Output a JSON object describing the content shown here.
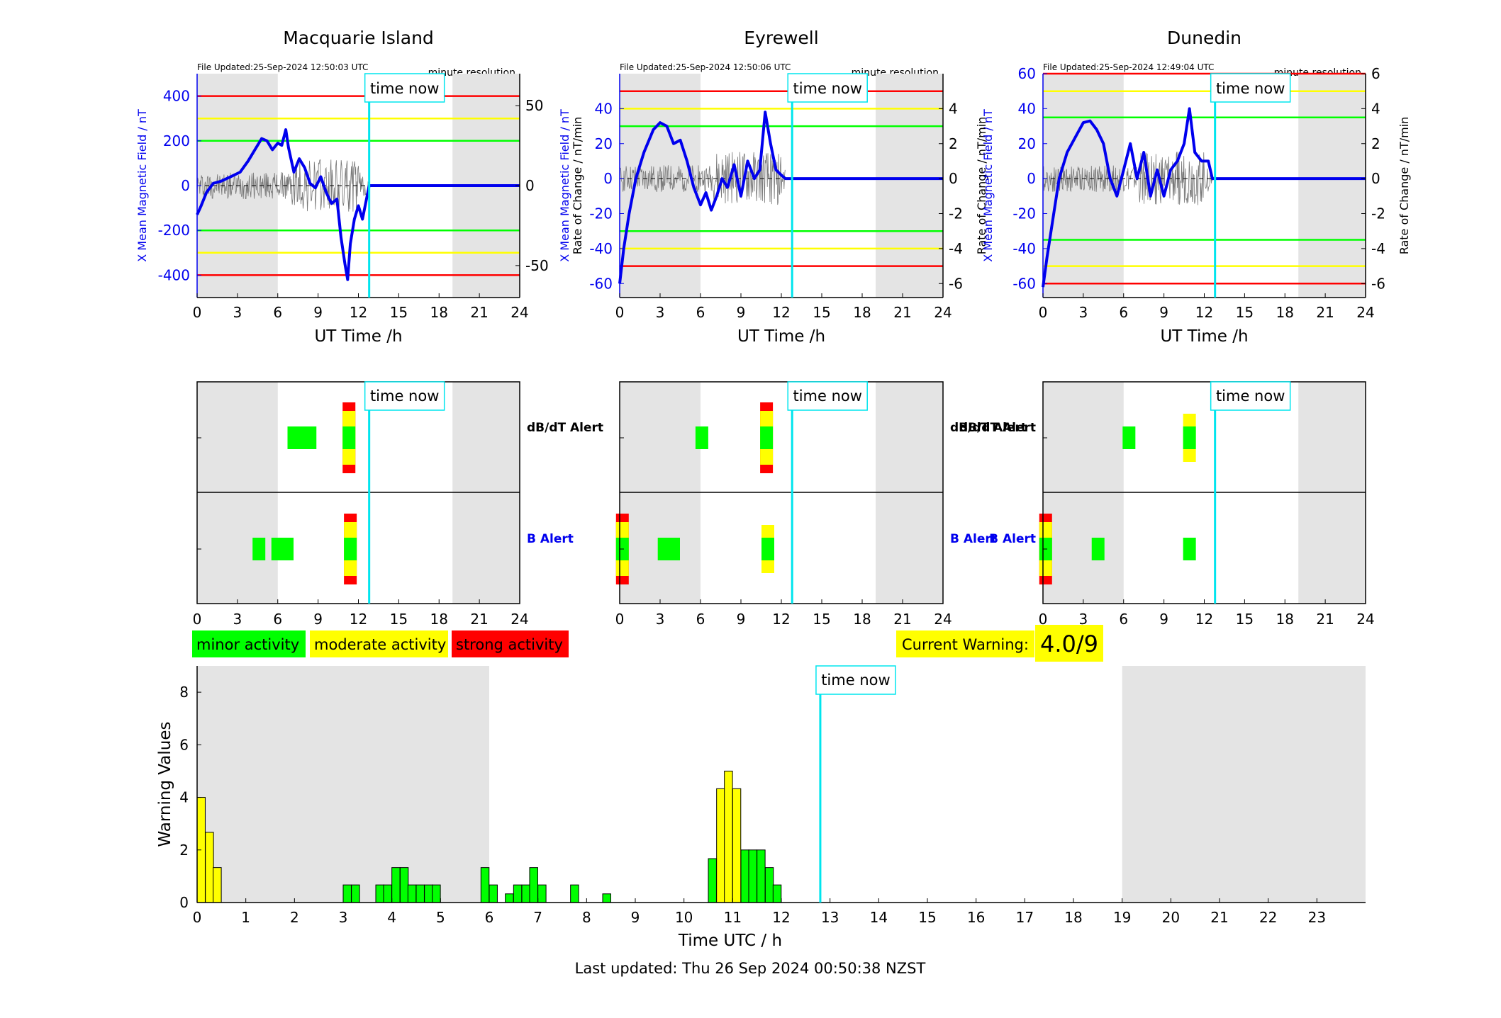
{
  "stations": [
    {
      "name": "Macquarie Island",
      "file_updated": "File Updated:25-Sep-2024 12:50:03 UTC",
      "resolution": "minute resolution",
      "left_ylabel": "X Mean Magnetic Field / nT",
      "right_ylabel": "",
      "left_ylim": [
        -500,
        500
      ],
      "left_ticks": [
        "-400",
        "-200",
        "0",
        "200",
        "400"
      ],
      "left_tick_values": [
        -400,
        -200,
        0,
        200,
        400
      ],
      "right_ticks": [
        "-50",
        "0",
        "50"
      ],
      "right_tick_values": [
        -50,
        0,
        50
      ],
      "right_ylim": [
        -70,
        70
      ],
      "thresholds": {
        "red": 400,
        "yellow": 300,
        "green": 200
      },
      "trace": [
        [
          0,
          -130
        ],
        [
          0.3,
          -90
        ],
        [
          0.7,
          -30
        ],
        [
          1.2,
          10
        ],
        [
          1.8,
          20
        ],
        [
          2.5,
          40
        ],
        [
          3.2,
          60
        ],
        [
          3.8,
          110
        ],
        [
          4.3,
          160
        ],
        [
          4.8,
          210
        ],
        [
          5.2,
          200
        ],
        [
          5.6,
          160
        ],
        [
          6.0,
          190
        ],
        [
          6.3,
          180
        ],
        [
          6.6,
          250
        ],
        [
          6.8,
          170
        ],
        [
          7.2,
          60
        ],
        [
          7.6,
          120
        ],
        [
          8.0,
          80
        ],
        [
          8.4,
          10
        ],
        [
          8.8,
          -10
        ],
        [
          9.2,
          40
        ],
        [
          9.6,
          -30
        ],
        [
          10.0,
          -80
        ],
        [
          10.4,
          -60
        ],
        [
          10.7,
          -230
        ],
        [
          11.0,
          -350
        ],
        [
          11.2,
          -420
        ],
        [
          11.4,
          -260
        ],
        [
          11.7,
          -150
        ],
        [
          12.0,
          -90
        ],
        [
          12.3,
          -150
        ],
        [
          12.8,
          0
        ],
        [
          24,
          0
        ]
      ],
      "alert_db": [
        [
          7.2,
          "green"
        ],
        [
          7.8,
          "green"
        ],
        [
          8.4,
          "green"
        ],
        [
          11.3,
          "red"
        ]
      ],
      "alert_b": [
        [
          4.6,
          "green"
        ],
        [
          6.0,
          "green"
        ],
        [
          6.7,
          "green"
        ],
        [
          11.4,
          "red"
        ]
      ]
    },
    {
      "name": "Eyrewell",
      "file_updated": "File Updated:25-Sep-2024 12:50:06 UTC",
      "resolution": "minute resolution",
      "left_ylabel": "X Mean Magnetic Field / nT",
      "right_ylabel": "Rate of Change / nT/min",
      "left_ylim": [
        -68,
        60
      ],
      "left_ticks": [
        "-60",
        "-40",
        "-20",
        "0",
        "20",
        "40"
      ],
      "left_tick_values": [
        -60,
        -40,
        -20,
        0,
        20,
        40
      ],
      "right_ticks": [
        "-6",
        "-4",
        "-2",
        "0",
        "2",
        "4"
      ],
      "right_tick_values": [
        -6,
        -4,
        -2,
        0,
        2,
        4
      ],
      "right_ylim": [
        -6.8,
        6.0
      ],
      "thresholds": {
        "red": 50,
        "yellow": 40,
        "green": 30
      },
      "trace": [
        [
          0,
          -60
        ],
        [
          0.3,
          -40
        ],
        [
          0.7,
          -20
        ],
        [
          1.2,
          0
        ],
        [
          1.8,
          15
        ],
        [
          2.5,
          28
        ],
        [
          3.0,
          32
        ],
        [
          3.5,
          30
        ],
        [
          4.0,
          20
        ],
        [
          4.5,
          22
        ],
        [
          5.0,
          10
        ],
        [
          5.5,
          -5
        ],
        [
          6.0,
          -15
        ],
        [
          6.4,
          -8
        ],
        [
          6.8,
          -18
        ],
        [
          7.2,
          -10
        ],
        [
          7.6,
          0
        ],
        [
          8.0,
          -5
        ],
        [
          8.5,
          8
        ],
        [
          9.0,
          -10
        ],
        [
          9.5,
          10
        ],
        [
          10.0,
          0
        ],
        [
          10.4,
          5
        ],
        [
          10.8,
          38
        ],
        [
          11.2,
          20
        ],
        [
          11.6,
          5
        ],
        [
          12.0,
          2
        ],
        [
          12.3,
          0
        ],
        [
          24,
          0
        ]
      ],
      "alert_db": [
        [
          6.1,
          "green"
        ],
        [
          10.9,
          "red"
        ]
      ],
      "alert_b": [
        [
          0.2,
          "red"
        ],
        [
          3.3,
          "green"
        ],
        [
          4.0,
          "green"
        ],
        [
          11.0,
          "yellow"
        ]
      ]
    },
    {
      "name": "Dunedin",
      "file_updated": "File Updated:25-Sep-2024 12:49:04 UTC",
      "resolution": "minute resolution",
      "left_ylabel": "X Mean Magnetic Field / nT",
      "right_ylabel": "Rate of Change / nT/min",
      "left_ylim": [
        -68,
        60
      ],
      "left_ticks": [
        "-60",
        "-40",
        "-20",
        "0",
        "20",
        "40",
        "60"
      ],
      "left_tick_values": [
        -60,
        -40,
        -20,
        0,
        20,
        40,
        60
      ],
      "right_ticks": [
        "-6",
        "-4",
        "-2",
        "0",
        "2",
        "4",
        "6"
      ],
      "right_tick_values": [
        -6,
        -4,
        -2,
        0,
        2,
        4,
        6
      ],
      "right_ylim": [
        -6.8,
        6.0
      ],
      "thresholds": {
        "red": 60,
        "yellow": 50,
        "green": 35
      },
      "trace": [
        [
          0,
          -62
        ],
        [
          0.3,
          -45
        ],
        [
          0.7,
          -25
        ],
        [
          1.2,
          0
        ],
        [
          1.8,
          15
        ],
        [
          2.5,
          25
        ],
        [
          3.0,
          32
        ],
        [
          3.5,
          33
        ],
        [
          4.0,
          28
        ],
        [
          4.5,
          20
        ],
        [
          5.0,
          0
        ],
        [
          5.5,
          -10
        ],
        [
          6.0,
          5
        ],
        [
          6.5,
          20
        ],
        [
          7.0,
          0
        ],
        [
          7.5,
          15
        ],
        [
          8.0,
          -10
        ],
        [
          8.5,
          5
        ],
        [
          9.0,
          -10
        ],
        [
          9.5,
          5
        ],
        [
          10.0,
          10
        ],
        [
          10.5,
          20
        ],
        [
          10.9,
          40
        ],
        [
          11.3,
          15
        ],
        [
          11.8,
          10
        ],
        [
          12.3,
          10
        ],
        [
          12.6,
          0
        ],
        [
          24,
          0
        ]
      ],
      "alert_db": [
        [
          6.4,
          "green"
        ],
        [
          10.9,
          "yellow"
        ]
      ],
      "alert_b": [
        [
          0.2,
          "red"
        ],
        [
          4.1,
          "green"
        ],
        [
          10.9,
          "green"
        ]
      ]
    }
  ],
  "xlabel": "UT Time /h",
  "x_ticks": [
    "0",
    "3",
    "6",
    "9",
    "12",
    "15",
    "18",
    "21",
    "24"
  ],
  "time_now_label": "time now",
  "time_now_value": 12.8,
  "night_bands": [
    [
      0,
      6
    ],
    [
      19,
      24
    ]
  ],
  "alert_labels": {
    "db": "dB/dT Alert",
    "b": "B Alert"
  },
  "legend": {
    "minor": "minor activity",
    "moderate": "moderate activity",
    "strong": "strong activity"
  },
  "current_warning": {
    "label": "Current Warning:",
    "value": "4.0/9"
  },
  "chart_data": {
    "type": "bar",
    "xlabel": "Time UTC / h",
    "ylabel": "Warning Values",
    "ylim": [
      0,
      9
    ],
    "y_ticks": [
      "0",
      "2",
      "4",
      "6",
      "8"
    ],
    "x_ticks": [
      "0",
      "1",
      "2",
      "3",
      "4",
      "5",
      "6",
      "7",
      "8",
      "9",
      "10",
      "11",
      "12",
      "13",
      "14",
      "15",
      "16",
      "17",
      "18",
      "19",
      "20",
      "21",
      "22",
      "23"
    ],
    "night_bands": [
      [
        0,
        6
      ],
      [
        19,
        24
      ]
    ],
    "time_now": 12.8,
    "bars": [
      [
        0.0,
        4.0,
        "yellow"
      ],
      [
        0.17,
        2.67,
        "yellow"
      ],
      [
        0.33,
        1.33,
        "yellow"
      ],
      [
        3.0,
        0.67,
        "green"
      ],
      [
        3.17,
        0.67,
        "green"
      ],
      [
        3.67,
        0.67,
        "green"
      ],
      [
        3.83,
        0.67,
        "green"
      ],
      [
        4.0,
        1.33,
        "green"
      ],
      [
        4.17,
        1.33,
        "green"
      ],
      [
        4.33,
        0.67,
        "green"
      ],
      [
        4.5,
        0.67,
        "green"
      ],
      [
        4.67,
        0.67,
        "green"
      ],
      [
        4.83,
        0.67,
        "green"
      ],
      [
        5.83,
        1.33,
        "green"
      ],
      [
        6.0,
        0.67,
        "green"
      ],
      [
        6.33,
        0.33,
        "green"
      ],
      [
        6.5,
        0.67,
        "green"
      ],
      [
        6.67,
        0.67,
        "green"
      ],
      [
        6.83,
        1.33,
        "green"
      ],
      [
        7.0,
        0.67,
        "green"
      ],
      [
        7.67,
        0.67,
        "green"
      ],
      [
        8.33,
        0.33,
        "green"
      ],
      [
        10.5,
        1.67,
        "green"
      ],
      [
        10.67,
        4.33,
        "yellow"
      ],
      [
        10.83,
        5.0,
        "yellow"
      ],
      [
        11.0,
        4.33,
        "yellow"
      ],
      [
        11.17,
        2.0,
        "green"
      ],
      [
        11.33,
        2.0,
        "green"
      ],
      [
        11.5,
        2.0,
        "green"
      ],
      [
        11.67,
        1.33,
        "green"
      ],
      [
        11.83,
        0.67,
        "green"
      ]
    ]
  },
  "footer": "Last updated: Thu 26 Sep 2024 00:50:38 NZST",
  "colors": {
    "red": "#ff0000",
    "yellow": "#ffff00",
    "green": "#00ff00",
    "cyan": "#00e5ee",
    "blue": "#0000ee",
    "night": "#e4e4e4"
  }
}
